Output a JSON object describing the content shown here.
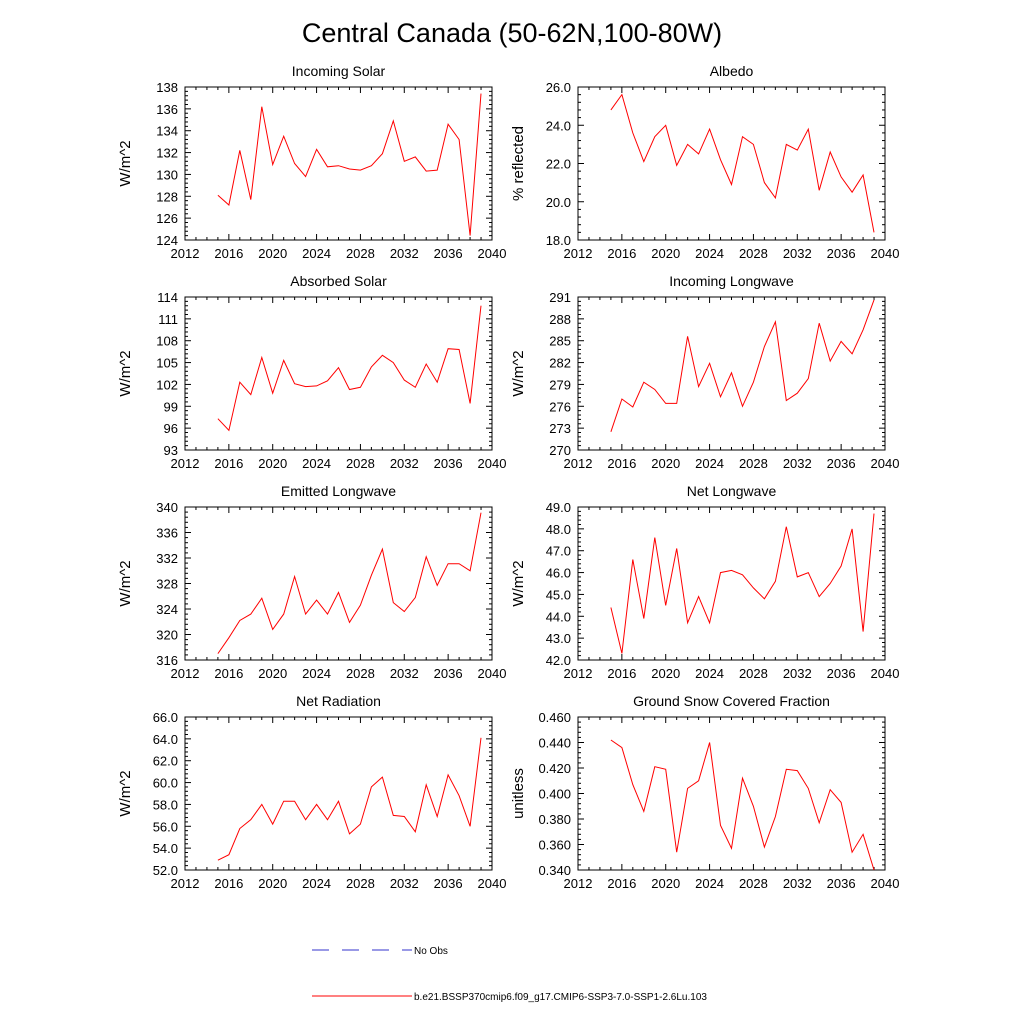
{
  "page_title": "Central Canada (50-62N,100-80W)",
  "legend": {
    "obs_label": "No Obs",
    "obs_color": "#3333cc",
    "model_label": "b.e21.BSSP370cmip6.f09_g17.CMIP6-SSP3-7.0-SSP1-2.6Lu.103",
    "model_color": "#ff0000"
  },
  "chart_data": [
    {
      "type": "line",
      "title": "Incoming Solar",
      "ylabel": "W/m^2",
      "xlim": [
        2012,
        2040
      ],
      "ylim": [
        124,
        138
      ],
      "x_ticks": [
        2012,
        2016,
        2020,
        2024,
        2028,
        2032,
        2036,
        2040
      ],
      "y_ticks": [
        "124",
        "126",
        "128",
        "130",
        "132",
        "134",
        "136",
        "138"
      ],
      "series": [
        {
          "name": "b.e21.BSSP370cmip6.f09_g17.CMIP6-SSP3-7.0-SSP1-2.6Lu.103",
          "color": "#ff0000",
          "x": [
            2015,
            2016,
            2017,
            2018,
            2019,
            2020,
            2021,
            2022,
            2023,
            2024,
            2025,
            2026,
            2027,
            2028,
            2029,
            2030,
            2031,
            2032,
            2033,
            2034,
            2035,
            2036,
            2037,
            2038,
            2039
          ],
          "values": [
            128.1,
            127.2,
            132.2,
            127.7,
            136.2,
            130.9,
            133.5,
            131.0,
            129.8,
            132.3,
            130.7,
            130.8,
            130.5,
            130.4,
            130.8,
            131.9,
            134.9,
            131.2,
            131.6,
            130.3,
            130.4,
            134.6,
            133.2,
            124.4,
            137.4
          ]
        }
      ]
    },
    {
      "type": "line",
      "title": "Albedo",
      "ylabel": "% reflected",
      "xlim": [
        2012,
        2040
      ],
      "ylim": [
        18,
        26
      ],
      "x_ticks": [
        2012,
        2016,
        2020,
        2024,
        2028,
        2032,
        2036,
        2040
      ],
      "y_ticks": [
        "18.0",
        "20.0",
        "22.0",
        "24.0",
        "26.0"
      ],
      "series": [
        {
          "name": "b.e21.BSSP370cmip6.f09_g17.CMIP6-SSP3-7.0-SSP1-2.6Lu.103",
          "color": "#ff0000",
          "x": [
            2015,
            2016,
            2017,
            2018,
            2019,
            2020,
            2021,
            2022,
            2023,
            2024,
            2025,
            2026,
            2027,
            2028,
            2029,
            2030,
            2031,
            2032,
            2033,
            2034,
            2035,
            2036,
            2037,
            2038,
            2039
          ],
          "values": [
            24.8,
            25.6,
            23.6,
            22.1,
            23.4,
            24.0,
            21.9,
            23.0,
            22.5,
            23.8,
            22.2,
            20.9,
            23.4,
            23.0,
            21.0,
            20.2,
            23.0,
            22.7,
            23.8,
            20.6,
            22.6,
            21.3,
            20.5,
            21.4,
            18.4
          ]
        }
      ]
    },
    {
      "type": "line",
      "title": "Absorbed Solar",
      "ylabel": "W/m^2",
      "xlim": [
        2012,
        2040
      ],
      "ylim": [
        93,
        114
      ],
      "x_ticks": [
        2012,
        2016,
        2020,
        2024,
        2028,
        2032,
        2036,
        2040
      ],
      "y_ticks": [
        "93",
        "96",
        "99",
        "102",
        "105",
        "108",
        "111",
        "114"
      ],
      "series": [
        {
          "name": "b.e21.BSSP370cmip6.f09_g17.CMIP6-SSP3-7.0-SSP1-2.6Lu.103",
          "color": "#ff0000",
          "x": [
            2015,
            2016,
            2017,
            2018,
            2019,
            2020,
            2021,
            2022,
            2023,
            2024,
            2025,
            2026,
            2027,
            2028,
            2029,
            2030,
            2031,
            2032,
            2033,
            2034,
            2035,
            2036,
            2037,
            2038,
            2039
          ],
          "values": [
            97.3,
            95.7,
            102.3,
            100.6,
            105.7,
            100.8,
            105.3,
            102.1,
            101.7,
            101.8,
            102.5,
            104.3,
            101.3,
            101.6,
            104.4,
            106.0,
            105.0,
            102.6,
            101.6,
            104.8,
            102.3,
            106.9,
            106.8,
            99.4,
            112.8
          ]
        }
      ]
    },
    {
      "type": "line",
      "title": "Incoming Longwave",
      "ylabel": "W/m^2",
      "xlim": [
        2012,
        2040
      ],
      "ylim": [
        270,
        291
      ],
      "x_ticks": [
        2012,
        2016,
        2020,
        2024,
        2028,
        2032,
        2036,
        2040
      ],
      "y_ticks": [
        "270",
        "273",
        "276",
        "279",
        "282",
        "285",
        "288",
        "291"
      ],
      "series": [
        {
          "name": "b.e21.BSSP370cmip6.f09_g17.CMIP6-SSP3-7.0-SSP1-2.6Lu.103",
          "color": "#ff0000",
          "x": [
            2015,
            2016,
            2017,
            2018,
            2019,
            2020,
            2021,
            2022,
            2023,
            2024,
            2025,
            2026,
            2027,
            2028,
            2029,
            2030,
            2031,
            2032,
            2033,
            2034,
            2035,
            2036,
            2037,
            2038,
            2039
          ],
          "values": [
            272.5,
            277.0,
            275.9,
            279.3,
            278.3,
            276.4,
            276.4,
            285.6,
            278.7,
            281.9,
            277.3,
            280.6,
            276.0,
            279.3,
            284.2,
            287.6,
            276.8,
            277.8,
            279.8,
            287.4,
            282.2,
            284.9,
            283.2,
            286.5,
            290.6
          ]
        }
      ]
    },
    {
      "type": "line",
      "title": "Emitted Longwave",
      "ylabel": "W/m^2",
      "xlim": [
        2012,
        2040
      ],
      "ylim": [
        316,
        340
      ],
      "x_ticks": [
        2012,
        2016,
        2020,
        2024,
        2028,
        2032,
        2036,
        2040
      ],
      "y_ticks": [
        "316",
        "320",
        "324",
        "328",
        "332",
        "336",
        "340"
      ],
      "series": [
        {
          "name": "b.e21.BSSP370cmip6.f09_g17.CMIP6-SSP3-7.0-SSP1-2.6Lu.103",
          "color": "#ff0000",
          "x": [
            2015,
            2016,
            2017,
            2018,
            2019,
            2020,
            2021,
            2022,
            2023,
            2024,
            2025,
            2026,
            2027,
            2028,
            2029,
            2030,
            2031,
            2032,
            2033,
            2034,
            2035,
            2036,
            2037,
            2038,
            2039
          ],
          "values": [
            317.0,
            319.5,
            322.2,
            323.2,
            325.7,
            320.8,
            323.2,
            329.1,
            323.2,
            325.4,
            323.2,
            326.6,
            321.9,
            324.6,
            329.3,
            333.4,
            325.0,
            323.6,
            325.8,
            332.2,
            327.7,
            331.1,
            331.1,
            330.0,
            339.1
          ]
        }
      ]
    },
    {
      "type": "line",
      "title": "Net Longwave",
      "ylabel": "W/m^2",
      "xlim": [
        2012,
        2040
      ],
      "ylim": [
        42,
        49
      ],
      "x_ticks": [
        2012,
        2016,
        2020,
        2024,
        2028,
        2032,
        2036,
        2040
      ],
      "y_ticks": [
        "42.0",
        "43.0",
        "44.0",
        "45.0",
        "46.0",
        "47.0",
        "48.0",
        "49.0"
      ],
      "series": [
        {
          "name": "b.e21.BSSP370cmip6.f09_g17.CMIP6-SSP3-7.0-SSP1-2.6Lu.103",
          "color": "#ff0000",
          "x": [
            2015,
            2016,
            2017,
            2018,
            2019,
            2020,
            2021,
            2022,
            2023,
            2024,
            2025,
            2026,
            2027,
            2028,
            2029,
            2030,
            2031,
            2032,
            2033,
            2034,
            2035,
            2036,
            2037,
            2038,
            2039
          ],
          "values": [
            44.4,
            42.3,
            46.6,
            43.9,
            47.6,
            44.5,
            47.1,
            43.7,
            44.9,
            43.7,
            46.0,
            46.1,
            45.9,
            45.3,
            44.8,
            45.6,
            48.1,
            45.8,
            46.0,
            44.9,
            45.5,
            46.3,
            48.0,
            43.3,
            48.7
          ]
        }
      ]
    },
    {
      "type": "line",
      "title": "Net Radiation",
      "ylabel": "W/m^2",
      "xlim": [
        2012,
        2040
      ],
      "ylim": [
        52,
        66
      ],
      "x_ticks": [
        2012,
        2016,
        2020,
        2024,
        2028,
        2032,
        2036,
        2040
      ],
      "y_ticks": [
        "52.0",
        "54.0",
        "56.0",
        "58.0",
        "60.0",
        "62.0",
        "64.0",
        "66.0"
      ],
      "series": [
        {
          "name": "b.e21.BSSP370cmip6.f09_g17.CMIP6-SSP3-7.0-SSP1-2.6Lu.103",
          "color": "#ff0000",
          "x": [
            2015,
            2016,
            2017,
            2018,
            2019,
            2020,
            2021,
            2022,
            2023,
            2024,
            2025,
            2026,
            2027,
            2028,
            2029,
            2030,
            2031,
            2032,
            2033,
            2034,
            2035,
            2036,
            2037,
            2038,
            2039
          ],
          "values": [
            52.9,
            53.4,
            55.8,
            56.6,
            58.0,
            56.2,
            58.3,
            58.3,
            56.6,
            58.0,
            56.6,
            58.3,
            55.3,
            56.2,
            59.6,
            60.5,
            57.0,
            56.9,
            55.5,
            59.8,
            56.9,
            60.7,
            58.8,
            56.0,
            64.1
          ]
        }
      ]
    },
    {
      "type": "line",
      "title": "Ground Snow Covered Fraction",
      "ylabel": "unitless",
      "xlim": [
        2012,
        2040
      ],
      "ylim": [
        0.34,
        0.46
      ],
      "x_ticks": [
        2012,
        2016,
        2020,
        2024,
        2028,
        2032,
        2036,
        2040
      ],
      "y_ticks": [
        "0.340",
        "0.360",
        "0.380",
        "0.400",
        "0.420",
        "0.440",
        "0.460"
      ],
      "series": [
        {
          "name": "b.e21.BSSP370cmip6.f09_g17.CMIP6-SSP3-7.0-SSP1-2.6Lu.103",
          "color": "#ff0000",
          "x": [
            2015,
            2016,
            2017,
            2018,
            2019,
            2020,
            2021,
            2022,
            2023,
            2024,
            2025,
            2026,
            2027,
            2028,
            2029,
            2030,
            2031,
            2032,
            2033,
            2034,
            2035,
            2036,
            2037,
            2038,
            2039
          ],
          "values": [
            0.442,
            0.436,
            0.407,
            0.386,
            0.421,
            0.419,
            0.354,
            0.404,
            0.41,
            0.44,
            0.375,
            0.357,
            0.412,
            0.39,
            0.358,
            0.382,
            0.419,
            0.418,
            0.404,
            0.377,
            0.403,
            0.393,
            0.354,
            0.368,
            0.34
          ]
        }
      ]
    }
  ]
}
